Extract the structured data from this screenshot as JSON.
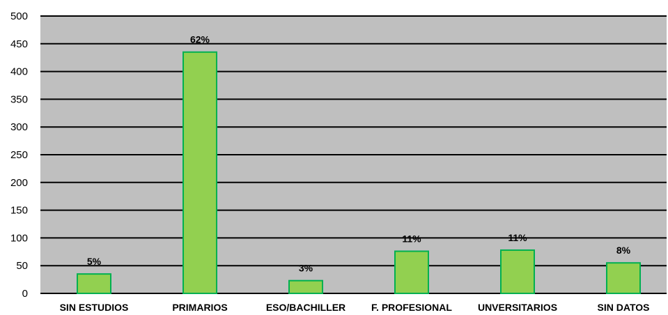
{
  "chart_data": {
    "type": "bar",
    "categories": [
      "SIN ESTUDIOS",
      "PRIMARIOS",
      "ESO/BACHILLER",
      "F. PROFESIONAL",
      "UNVERSITARIOS",
      "SIN DATOS"
    ],
    "values": [
      35,
      435,
      23,
      76,
      78,
      55
    ],
    "data_labels": [
      "5%",
      "62%",
      "3%",
      "11%",
      "11%",
      "8%"
    ],
    "ylim": [
      0,
      500
    ],
    "yticks": [
      0,
      50,
      100,
      150,
      200,
      250,
      300,
      350,
      400,
      450,
      500
    ],
    "grid": true,
    "legend": "none",
    "colors": {
      "bar_fill": "#92d050",
      "bar_stroke": "#00b050",
      "plot_background": "#bfbfbf",
      "gridline": "#000000"
    }
  }
}
